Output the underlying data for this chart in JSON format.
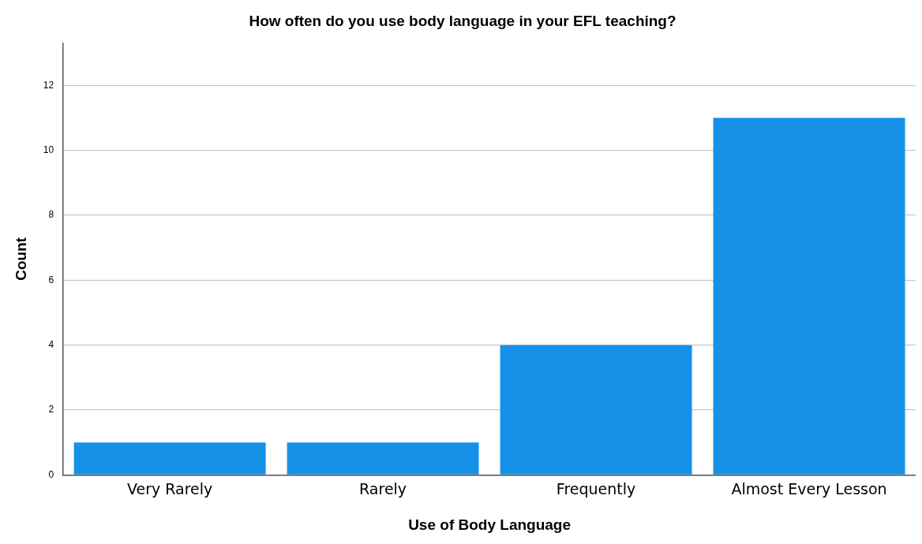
{
  "chart_data": {
    "type": "bar",
    "title": "How often do you use body language in your EFL teaching?",
    "xlabel": "Use of Body Language",
    "ylabel": "Count",
    "categories": [
      "Very Rarely",
      "Rarely",
      "Frequently",
      "Almost Every Lesson"
    ],
    "values": [
      1,
      1,
      4,
      11
    ],
    "color": "#1591e8",
    "ylim": [
      0,
      13.3
    ],
    "yticks": [
      0,
      2,
      4,
      6,
      8,
      10,
      12
    ],
    "grid": "y",
    "legend": false
  }
}
